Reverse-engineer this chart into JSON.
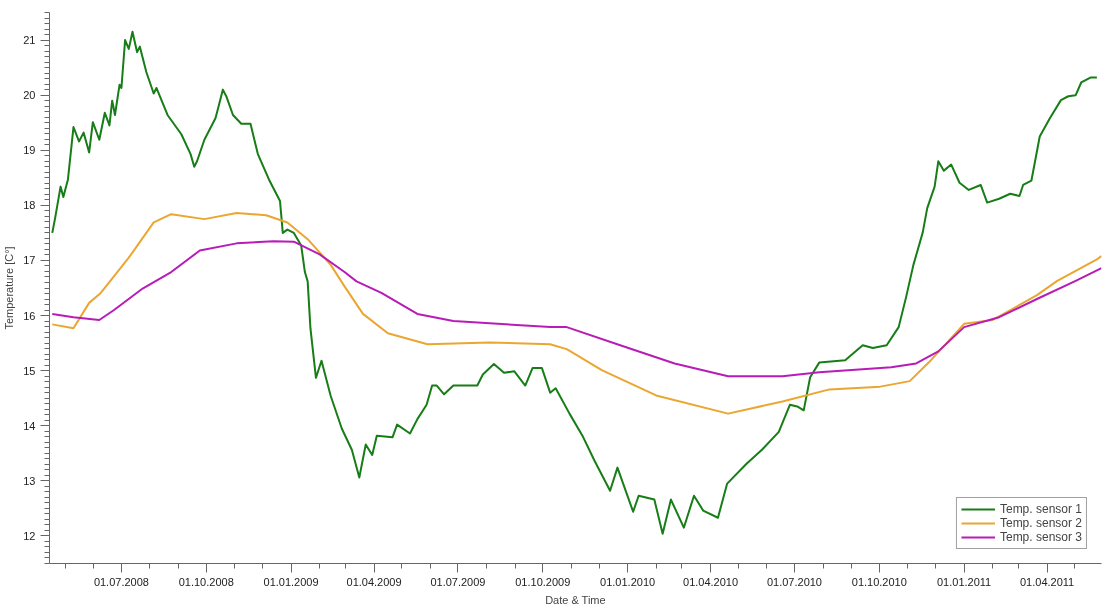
{
  "chart_data": {
    "type": "line",
    "xlabel": "Date & Time",
    "ylabel": "Temperature [C°]",
    "xlim": [
      "2008-04-14",
      "2011-05-30"
    ],
    "ylim": [
      11.5,
      21.5
    ],
    "xticks": [
      {
        "value": "2008-07-01",
        "label": "01.07.2008"
      },
      {
        "value": "2008-10-01",
        "label": "01.10.2008"
      },
      {
        "value": "2009-01-01",
        "label": "01.01.2009"
      },
      {
        "value": "2009-04-01",
        "label": "01.04.2009"
      },
      {
        "value": "2009-07-01",
        "label": "01.07.2009"
      },
      {
        "value": "2009-10-01",
        "label": "01.10.2009"
      },
      {
        "value": "2010-01-01",
        "label": "01.01.2010"
      },
      {
        "value": "2010-04-01",
        "label": "01.04.2010"
      },
      {
        "value": "2010-07-01",
        "label": "01.07.2010"
      },
      {
        "value": "2010-10-01",
        "label": "01.10.2010"
      },
      {
        "value": "2011-01-01",
        "label": "01.01.2011"
      },
      {
        "value": "2011-04-01",
        "label": "01.04.2011"
      }
    ],
    "yticks": [
      12,
      13,
      14,
      15,
      16,
      17,
      18,
      19,
      20,
      21
    ],
    "grid": false,
    "legend": "bottom right",
    "marker": "none",
    "line_style": "solid",
    "series": [
      {
        "name": "Temp. sensor 1",
        "color": "#177d17",
        "x": [
          "2008-04-17",
          "2008-04-20",
          "2008-04-26",
          "2008-04-29",
          "2008-05-04",
          "2008-05-10",
          "2008-05-16",
          "2008-05-21",
          "2008-05-27",
          "2008-05-31",
          "2008-06-07",
          "2008-06-13",
          "2008-06-18",
          "2008-06-21",
          "2008-06-24",
          "2008-06-29",
          "2008-07-01",
          "2008-07-05",
          "2008-07-09",
          "2008-07-13",
          "2008-07-18",
          "2008-07-21",
          "2008-07-28",
          "2008-08-05",
          "2008-08-08",
          "2008-08-20",
          "2008-09-04",
          "2008-09-14",
          "2008-09-18",
          "2008-09-21",
          "2008-09-29",
          "2008-10-11",
          "2008-10-14",
          "2008-10-19",
          "2008-10-23",
          "2008-10-30",
          "2008-11-08",
          "2008-11-18",
          "2008-11-26",
          "2008-12-08",
          "2008-12-20",
          "2008-12-23",
          "2008-12-28",
          "2009-01-04",
          "2009-01-12",
          "2009-01-16",
          "2009-01-19",
          "2009-01-22",
          "2009-01-28",
          "2009-02-03",
          "2009-02-13",
          "2009-02-25",
          "2009-03-08",
          "2009-03-16",
          "2009-03-23",
          "2009-03-30",
          "2009-04-04",
          "2009-04-21",
          "2009-04-26",
          "2009-05-10",
          "2009-05-18",
          "2009-05-28",
          "2009-06-03",
          "2009-06-08",
          "2009-06-16",
          "2009-06-26",
          "2009-07-12",
          "2009-07-22",
          "2009-07-28",
          "2009-08-09",
          "2009-08-20",
          "2009-08-31",
          "2009-09-12",
          "2009-09-20",
          "2009-09-30",
          "2009-10-09",
          "2009-10-15",
          "2009-10-30",
          "2009-11-13",
          "2009-11-26",
          "2009-12-13",
          "2009-12-21",
          "2010-01-07",
          "2010-01-13",
          "2010-01-30",
          "2010-02-08",
          "2010-02-17",
          "2010-03-03",
          "2010-03-14",
          "2010-03-24",
          "2010-04-09",
          "2010-04-19",
          "2010-05-10",
          "2010-05-27",
          "2010-06-14",
          "2010-06-26",
          "2010-07-04",
          "2010-07-11",
          "2010-07-18",
          "2010-07-28",
          "2010-08-25",
          "2010-09-13",
          "2010-09-24",
          "2010-10-09",
          "2010-10-22",
          "2010-10-30",
          "2010-11-07",
          "2010-11-17",
          "2010-11-22",
          "2010-11-30",
          "2010-12-04",
          "2010-12-10",
          "2010-12-18",
          "2010-12-27",
          "2011-01-06",
          "2011-01-19",
          "2011-01-26",
          "2011-02-08",
          "2011-02-20",
          "2011-03-02",
          "2011-03-06",
          "2011-03-15",
          "2011-03-24",
          "2011-04-04",
          "2011-04-16",
          "2011-04-24",
          "2011-05-02",
          "2011-05-08",
          "2011-05-18",
          "2011-05-25"
        ],
        "values": [
          17.5,
          17.76,
          18.34,
          18.15,
          18.47,
          19.42,
          19.16,
          19.32,
          18.96,
          19.51,
          19.19,
          19.68,
          19.45,
          19.9,
          19.64,
          20.19,
          20.13,
          21.0,
          20.84,
          21.15,
          20.78,
          20.88,
          20.42,
          20.03,
          20.13,
          19.64,
          19.29,
          18.93,
          18.7,
          18.8,
          19.19,
          19.58,
          19.77,
          20.1,
          19.97,
          19.64,
          19.48,
          19.48,
          18.93,
          18.47,
          18.08,
          17.5,
          17.56,
          17.5,
          17.27,
          16.79,
          16.62,
          15.77,
          14.87,
          15.18,
          14.54,
          13.95,
          13.56,
          13.06,
          13.66,
          13.47,
          13.82,
          13.79,
          14.02,
          13.86,
          14.12,
          14.38,
          14.73,
          14.73,
          14.57,
          14.73,
          14.73,
          14.73,
          14.93,
          15.12,
          14.96,
          14.99,
          14.73,
          15.05,
          15.05,
          14.6,
          14.68,
          14.22,
          13.82,
          13.37,
          12.82,
          13.24,
          12.44,
          12.73,
          12.66,
          12.04,
          12.66,
          12.15,
          12.73,
          12.46,
          12.33,
          12.95,
          13.31,
          13.57,
          13.89,
          14.38,
          14.35,
          14.28,
          14.88,
          15.15,
          15.19,
          15.46,
          15.41,
          15.46,
          15.79,
          16.33,
          16.92,
          17.5,
          17.95,
          18.34,
          18.8,
          18.63,
          18.74,
          18.41,
          18.28,
          18.37,
          18.05,
          18.12,
          18.21,
          18.17,
          18.37,
          18.45,
          19.25,
          19.58,
          19.91,
          19.98,
          20.0,
          20.23,
          20.32,
          20.32
        ]
      },
      {
        "name": "Temp. sensor 2",
        "color": "#eba630",
        "x": [
          "2008-04-17",
          "2008-05-10",
          "2008-05-27",
          "2008-06-08",
          "2008-07-09",
          "2008-08-05",
          "2008-08-24",
          "2008-09-29",
          "2008-11-03",
          "2008-12-05",
          "2008-12-28",
          "2009-01-20",
          "2009-02-13",
          "2009-02-28",
          "2009-03-20",
          "2009-04-16",
          "2009-05-29",
          "2009-08-04",
          "2009-10-09",
          "2009-10-27",
          "2009-12-04",
          "2010-02-01",
          "2010-04-20",
          "2010-06-18",
          "2010-08-08",
          "2010-10-02",
          "2010-11-03",
          "2010-11-26",
          "2011-01-01",
          "2011-02-01",
          "2011-03-21",
          "2011-04-12",
          "2011-05-25",
          "2011-05-30"
        ],
        "values": [
          15.84,
          15.77,
          16.23,
          16.4,
          17.05,
          17.69,
          17.84,
          17.75,
          17.86,
          17.82,
          17.69,
          17.37,
          16.92,
          16.53,
          16.03,
          15.68,
          15.48,
          15.51,
          15.48,
          15.39,
          15.01,
          14.55,
          14.22,
          14.44,
          14.66,
          14.71,
          14.81,
          15.19,
          15.85,
          15.92,
          16.37,
          16.63,
          17.02,
          17.08
        ]
      },
      {
        "name": "Temp. sensor 3",
        "color": "#b81cb8",
        "x": [
          "2008-04-17",
          "2008-05-10",
          "2008-06-07",
          "2008-06-23",
          "2008-07-24",
          "2008-08-24",
          "2008-09-24",
          "2008-11-03",
          "2008-12-13",
          "2009-01-04",
          "2009-02-01",
          "2009-02-28",
          "2009-03-13",
          "2009-04-09",
          "2009-05-18",
          "2009-06-26",
          "2009-10-09",
          "2009-10-27",
          "2009-12-24",
          "2010-02-21",
          "2010-04-20",
          "2010-06-18",
          "2010-07-28",
          "2010-10-14",
          "2010-11-10",
          "2010-12-04",
          "2011-01-01",
          "2011-02-08",
          "2011-03-21",
          "2011-05-02",
          "2011-05-25",
          "2011-05-30"
        ],
        "values": [
          16.03,
          15.97,
          15.92,
          16.1,
          16.49,
          16.79,
          17.18,
          17.31,
          17.35,
          17.34,
          17.11,
          16.79,
          16.62,
          16.41,
          16.03,
          15.9,
          15.79,
          15.79,
          15.46,
          15.13,
          14.9,
          14.9,
          14.97,
          15.06,
          15.13,
          15.35,
          15.79,
          15.97,
          16.3,
          16.63,
          16.82,
          16.86
        ]
      }
    ]
  }
}
